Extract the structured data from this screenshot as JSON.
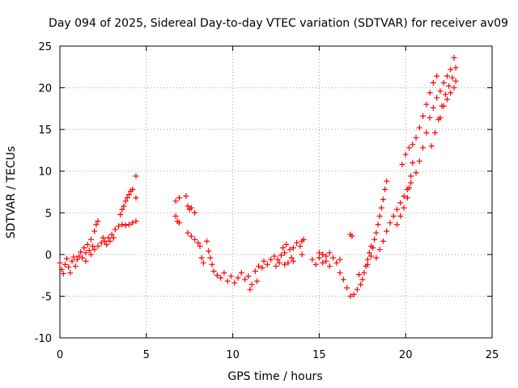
{
  "chart_data": {
    "type": "scatter",
    "title": "Day 094 of 2025, Sidereal Day-to-day VTEC variation (SDTVAR) for receiver av09",
    "xlabel": "GPS time / hours",
    "ylabel": "SDTVAR / TECUs",
    "xlim": [
      0,
      25
    ],
    "ylim": [
      -10,
      25
    ],
    "xticks": [
      "0",
      "5",
      "10",
      "15",
      "20",
      "25"
    ],
    "yticks": [
      "-10",
      "-5",
      "0",
      "5",
      "10",
      "15",
      "20",
      "25"
    ],
    "grid": true,
    "marker": "plus",
    "color": "#ff0000",
    "series": [
      {
        "name": "SDTVAR",
        "points": [
          [
            0.0,
            -1.0
          ],
          [
            0.1,
            -1.8
          ],
          [
            0.2,
            -2.3
          ],
          [
            0.3,
            -1.2
          ],
          [
            0.4,
            -0.5
          ],
          [
            0.5,
            -1.5
          ],
          [
            0.6,
            -2.2
          ],
          [
            0.7,
            -0.8
          ],
          [
            0.8,
            -0.3
          ],
          [
            0.9,
            -1.4
          ],
          [
            1.0,
            -0.6
          ],
          [
            1.1,
            -0.2
          ],
          [
            1.2,
            0.3
          ],
          [
            1.3,
            -0.4
          ],
          [
            1.4,
            0.8
          ],
          [
            1.5,
            0.2
          ],
          [
            1.6,
            1.2
          ],
          [
            1.7,
            0.5
          ],
          [
            1.8,
            1.8
          ],
          [
            1.9,
            1.0
          ],
          [
            2.0,
            2.8
          ],
          [
            2.1,
            3.6
          ],
          [
            2.2,
            4.0
          ],
          [
            1.5,
            -0.8
          ],
          [
            1.8,
            0.0
          ],
          [
            2.0,
            0.6
          ],
          [
            2.2,
            1.0
          ],
          [
            2.4,
            1.4
          ],
          [
            2.6,
            1.6
          ],
          [
            2.8,
            2.0
          ],
          [
            3.0,
            2.4
          ],
          [
            3.2,
            3.0
          ],
          [
            2.5,
            2.0
          ],
          [
            2.7,
            1.2
          ],
          [
            2.9,
            1.6
          ],
          [
            3.1,
            2.0
          ],
          [
            3.4,
            3.4
          ],
          [
            3.5,
            4.8
          ],
          [
            3.6,
            5.4
          ],
          [
            3.7,
            5.8
          ],
          [
            3.8,
            6.4
          ],
          [
            3.9,
            6.8
          ],
          [
            4.0,
            7.2
          ],
          [
            4.1,
            7.6
          ],
          [
            4.2,
            7.8
          ],
          [
            3.6,
            3.6
          ],
          [
            3.8,
            3.5
          ],
          [
            4.0,
            3.6
          ],
          [
            4.2,
            3.8
          ],
          [
            4.4,
            4.0
          ],
          [
            4.4,
            6.8
          ],
          [
            4.4,
            9.4
          ],
          [
            6.7,
            6.4
          ],
          [
            6.9,
            6.8
          ],
          [
            6.7,
            4.6
          ],
          [
            6.8,
            4.0
          ],
          [
            6.9,
            3.8
          ],
          [
            7.3,
            7.0
          ],
          [
            7.4,
            5.8
          ],
          [
            7.5,
            5.4
          ],
          [
            7.6,
            5.6
          ],
          [
            7.8,
            5.0
          ],
          [
            7.4,
            2.6
          ],
          [
            7.6,
            2.2
          ],
          [
            7.8,
            1.8
          ],
          [
            8.0,
            1.4
          ],
          [
            8.1,
            1.0
          ],
          [
            8.5,
            1.6
          ],
          [
            8.2,
            -0.4
          ],
          [
            8.3,
            -1.0
          ],
          [
            8.6,
            0.4
          ],
          [
            8.7,
            -0.4
          ],
          [
            8.8,
            -1.2
          ],
          [
            8.9,
            -2.0
          ],
          [
            9.1,
            -2.5
          ],
          [
            9.3,
            -2.8
          ],
          [
            9.5,
            -2.2
          ],
          [
            9.7,
            -3.2
          ],
          [
            9.9,
            -2.6
          ],
          [
            10.1,
            -3.4
          ],
          [
            10.3,
            -2.8
          ],
          [
            10.5,
            -2.2
          ],
          [
            10.7,
            -3.0
          ],
          [
            10.9,
            -2.6
          ],
          [
            11.1,
            -3.6
          ],
          [
            11.3,
            -2.0
          ],
          [
            11.5,
            -1.4
          ],
          [
            11.7,
            -1.6
          ],
          [
            11.4,
            -3.2
          ],
          [
            11.0,
            -4.2
          ],
          [
            11.8,
            -0.8
          ],
          [
            12.0,
            -1.2
          ],
          [
            12.2,
            -0.6
          ],
          [
            12.4,
            -0.2
          ],
          [
            12.6,
            -0.6
          ],
          [
            12.8,
            -0.1
          ],
          [
            13.0,
            0.2
          ],
          [
            13.2,
            -1.0
          ],
          [
            13.4,
            -0.4
          ],
          [
            12.9,
            0.8
          ],
          [
            13.1,
            1.2
          ],
          [
            13.3,
            0.6
          ],
          [
            13.5,
            0.8
          ],
          [
            13.7,
            1.4
          ],
          [
            13.9,
            1.0
          ],
          [
            14.0,
            1.6
          ],
          [
            14.1,
            1.8
          ],
          [
            12.5,
            -1.4
          ],
          [
            12.7,
            -1.0
          ],
          [
            13.0,
            -1.2
          ],
          [
            13.5,
            -0.8
          ],
          [
            14.0,
            0.0
          ],
          [
            14.6,
            -0.6
          ],
          [
            14.8,
            -1.2
          ],
          [
            15.0,
            -0.4
          ],
          [
            15.2,
            -1.0
          ],
          [
            15.4,
            -0.8
          ],
          [
            15.6,
            -1.4
          ],
          [
            15.8,
            -0.4
          ],
          [
            16.0,
            -1.0
          ],
          [
            16.2,
            -0.6
          ],
          [
            15.0,
            0.2
          ],
          [
            15.2,
            0.0
          ],
          [
            15.4,
            -0.2
          ],
          [
            15.6,
            0.2
          ],
          [
            16.2,
            -2.2
          ],
          [
            16.4,
            -3.0
          ],
          [
            16.6,
            -4.0
          ],
          [
            16.8,
            -5.0
          ],
          [
            17.0,
            -4.8
          ],
          [
            17.2,
            -4.2
          ],
          [
            17.4,
            -3.6
          ],
          [
            16.8,
            2.4
          ],
          [
            16.9,
            2.2
          ],
          [
            17.3,
            -2.4
          ],
          [
            17.5,
            -3.0
          ],
          [
            17.6,
            -2.2
          ],
          [
            17.7,
            -1.4
          ],
          [
            17.8,
            -0.6
          ],
          [
            17.9,
            0.2
          ],
          [
            18.0,
            1.0
          ],
          [
            17.8,
            -1.2
          ],
          [
            18.0,
            -0.2
          ],
          [
            18.1,
            0.8
          ],
          [
            18.2,
            1.8
          ],
          [
            18.3,
            2.6
          ],
          [
            18.4,
            3.6
          ],
          [
            18.5,
            4.6
          ],
          [
            18.6,
            5.6
          ],
          [
            18.7,
            6.6
          ],
          [
            18.8,
            7.8
          ],
          [
            18.9,
            8.8
          ],
          [
            18.3,
            -0.4
          ],
          [
            18.5,
            0.6
          ],
          [
            18.7,
            1.6
          ],
          [
            18.9,
            2.8
          ],
          [
            19.1,
            3.8
          ],
          [
            19.3,
            4.6
          ],
          [
            19.5,
            5.4
          ],
          [
            19.7,
            6.2
          ],
          [
            19.9,
            7.0
          ],
          [
            20.1,
            7.8
          ],
          [
            20.3,
            8.6
          ],
          [
            19.5,
            3.6
          ],
          [
            19.7,
            4.6
          ],
          [
            19.9,
            5.6
          ],
          [
            20.1,
            6.8
          ],
          [
            20.2,
            8.0
          ],
          [
            20.3,
            9.4
          ],
          [
            20.4,
            11.0
          ],
          [
            19.8,
            10.8
          ],
          [
            20.0,
            12.0
          ],
          [
            20.2,
            12.8
          ],
          [
            20.4,
            13.2
          ],
          [
            20.6,
            14.0
          ],
          [
            20.8,
            15.2
          ],
          [
            21.0,
            16.6
          ],
          [
            21.2,
            18.0
          ],
          [
            21.4,
            19.4
          ],
          [
            21.6,
            20.6
          ],
          [
            21.8,
            21.4
          ],
          [
            20.6,
            9.8
          ],
          [
            20.8,
            11.2
          ],
          [
            21.0,
            12.8
          ],
          [
            21.2,
            14.6
          ],
          [
            21.4,
            16.4
          ],
          [
            21.6,
            17.6
          ],
          [
            21.8,
            18.8
          ],
          [
            22.0,
            19.6
          ],
          [
            22.2,
            20.6
          ],
          [
            22.4,
            21.4
          ],
          [
            22.6,
            22.2
          ],
          [
            22.8,
            23.6
          ],
          [
            21.5,
            13.0
          ],
          [
            21.7,
            14.6
          ],
          [
            21.9,
            16.2
          ],
          [
            22.1,
            17.8
          ],
          [
            22.3,
            19.2
          ],
          [
            22.5,
            20.2
          ],
          [
            22.7,
            21.2
          ],
          [
            22.9,
            22.4
          ],
          [
            22.0,
            16.4
          ],
          [
            22.2,
            17.8
          ],
          [
            22.4,
            18.6
          ],
          [
            22.6,
            19.4
          ],
          [
            22.8,
            20.0
          ],
          [
            22.9,
            20.8
          ]
        ]
      }
    ]
  }
}
